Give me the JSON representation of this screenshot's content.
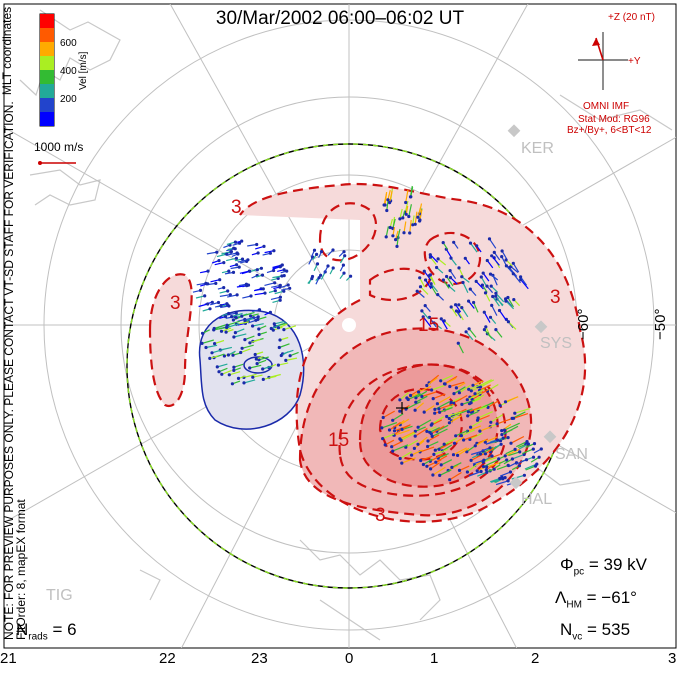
{
  "title": "30/Mar/2002 06:00–06:02 UT",
  "colorbar": {
    "label": "Vel [m/s]",
    "ticks": [
      "600",
      "400",
      "200"
    ],
    "colors": [
      "#ff0000",
      "#ff5a00",
      "#ffaa00",
      "#aaee22",
      "#33bb33",
      "#22aa99",
      "#2244cc",
      "#0000ff"
    ]
  },
  "coords_label": "MLT coordinates",
  "scale_label": "1000 m/s",
  "imf": {
    "header": "+Z (20 nT)",
    "y_label": "+Y",
    "label": "OMNI IMF",
    "model": "Stat Mod: RG96",
    "cond": "Bz+/By+, 6<BT<12"
  },
  "note": "NOTE: FOR PREVIEW PURPOSES ONLY. PLEASE CONTACT VT-SD STAFF FOR VERIFICATION.",
  "fitorder": "FitOrder: 8, mapEX format",
  "stats": {
    "phi_pc": "= 39 kV",
    "lambda_hm": "= −61°",
    "n_vc": "= 535",
    "n_rads": "= 6"
  },
  "stations": [
    "KER",
    "SYS",
    "SAN",
    "HAL",
    "TIG"
  ],
  "lat_labels": [
    "−60°",
    "−50°"
  ],
  "contour_labels": [
    "3",
    "3",
    "3",
    "3",
    "15",
    "15"
  ],
  "mlt_ticks": [
    "21",
    "22",
    "23",
    "0",
    "1",
    "2",
    "3"
  ]
}
